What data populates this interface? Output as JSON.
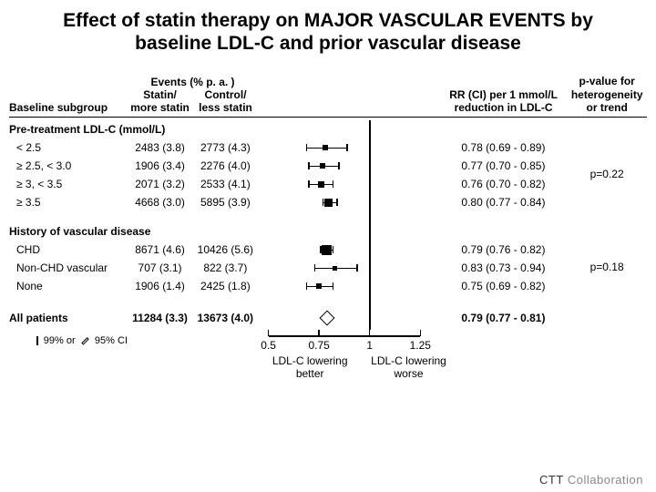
{
  "title": "Effect of statin therapy on MAJOR VASCULAR EVENTS by baseline LDL-C and prior vascular disease",
  "headers": {
    "subgroup": "Baseline subgroup",
    "events_top": "Events (% p. a. )",
    "statin": "Statin/\nmore statin",
    "control": "Control/\nless statin",
    "rr": "RR (CI) per 1 mmol/L reduction in LDL-C",
    "pval": "p-value for heterogeneity or trend"
  },
  "sections": [
    {
      "heading": "Pre-treatment LDL-C (mmol/L)",
      "rows": [
        {
          "label": "< 2.5",
          "statin": "2483 (3.8)",
          "control": "2773 (4.3)",
          "rr": "0.78 (0.69 - 0.89)",
          "point": 0.78,
          "lo": 0.69,
          "hi": 0.89,
          "size": 6
        },
        {
          "label": "≥ 2.5, < 3.0",
          "statin": "1906 (3.4)",
          "control": "2276 (4.0)",
          "rr": "0.77 (0.70 - 0.85)",
          "point": 0.77,
          "lo": 0.7,
          "hi": 0.85,
          "size": 6
        },
        {
          "label": "≥ 3, < 3.5",
          "statin": "2071 (3.2)",
          "control": "2533 (4.1)",
          "rr": "0.76 (0.70 - 0.82)",
          "point": 0.76,
          "lo": 0.7,
          "hi": 0.82,
          "size": 7
        },
        {
          "label": "≥ 3.5",
          "statin": "4668 (3.0)",
          "control": "5895 (3.9)",
          "rr": "0.80 (0.77 - 0.84)",
          "point": 0.8,
          "lo": 0.77,
          "hi": 0.84,
          "size": 9
        }
      ],
      "pvalue": "p=0.22"
    },
    {
      "heading": "History of vascular disease",
      "rows": [
        {
          "label": "CHD",
          "statin": "8671 (4.6)",
          "control": "10426 (5.6)",
          "rr": "0.79 (0.76 - 0.82)",
          "point": 0.79,
          "lo": 0.76,
          "hi": 0.82,
          "size": 11
        },
        {
          "label": "Non-CHD vascular",
          "statin": "707 (3.1)",
          "control": "822 (3.7)",
          "rr": "0.83 (0.73 - 0.94)",
          "point": 0.83,
          "lo": 0.73,
          "hi": 0.94,
          "size": 5
        },
        {
          "label": "None",
          "statin": "1906 (1.4)",
          "control": "2425 (1.8)",
          "rr": "0.75 (0.69 - 0.82)",
          "point": 0.75,
          "lo": 0.69,
          "hi": 0.82,
          "size": 6
        }
      ],
      "pvalue": "p=0.18"
    }
  ],
  "summary": {
    "label": "All patients",
    "statin": "11284 (3.3)",
    "control": "13673 (4.0)",
    "rr": "0.79 (0.77 - 0.81)",
    "point": 0.79,
    "lo": 0.77,
    "hi": 0.81
  },
  "axis": {
    "ticks": [
      0.5,
      0.75,
      1,
      1.25
    ],
    "xlim": [
      0.45,
      1.35
    ],
    "left_label": "LDL-C lowering better",
    "right_label": "LDL-C lowering worse"
  },
  "legend": {
    "ci99": "99% or",
    "ci95": "95% CI"
  },
  "footer": "CTT Collaboration",
  "colors": {
    "text": "#000000",
    "bg": "#ffffff",
    "footer": "#7c7c7c"
  }
}
